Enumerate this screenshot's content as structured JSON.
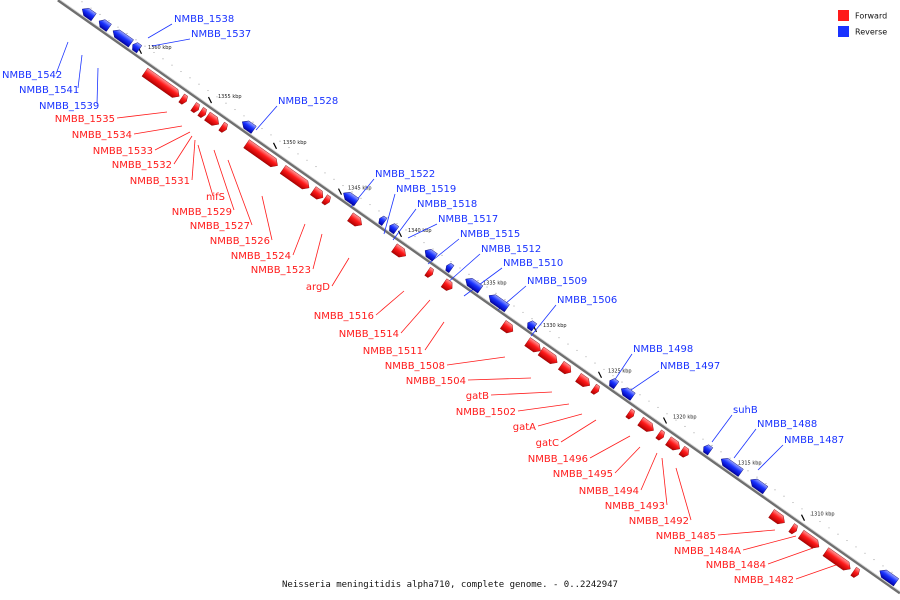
{
  "title": "Neisseria meningitidis alpha710, complete genome. - 0..2242947",
  "colors": {
    "forward": "#ff1a1a",
    "reverse": "#1a33ff",
    "axis": "#777777"
  },
  "legend": [
    {
      "label": "Forward",
      "strand": "forward"
    },
    {
      "label": "Reverse",
      "strand": "reverse"
    }
  ],
  "ticks": [
    "1360 kbp",
    "1355 kbp",
    "1350 kbp",
    "1345 kbp",
    "1340 kbp",
    "1335 kbp",
    "1330 kbp",
    "1325 kbp",
    "1320 kbp",
    "1315 kbp",
    "1310 kbp"
  ],
  "reverse_genes": [
    "NMBB_1538",
    "NMBB_1537",
    "NMBB_1542",
    "NMBB_1541",
    "NMBB_1539",
    "NMBB_1528",
    "NMBB_1522",
    "NMBB_1519",
    "NMBB_1518",
    "NMBB_1517",
    "NMBB_1515",
    "NMBB_1512",
    "NMBB_1510",
    "NMBB_1509",
    "NMBB_1506",
    "NMBB_1498",
    "NMBB_1497",
    "suhB",
    "NMBB_1488",
    "NMBB_1487"
  ],
  "forward_genes": [
    "NMBB_1535",
    "NMBB_1534",
    "NMBB_1533",
    "NMBB_1532",
    "NMBB_1531",
    "nifS",
    "NMBB_1529",
    "NMBB_1527",
    "NMBB_1526",
    "NMBB_1524",
    "NMBB_1523",
    "argD",
    "NMBB_1516",
    "NMBB_1514",
    "NMBB_1511",
    "NMBB_1508",
    "NMBB_1504",
    "gatB",
    "NMBB_1502",
    "gatA",
    "gatC",
    "NMBB_1496",
    "NMBB_1495",
    "NMBB_1494",
    "NMBB_1493",
    "NMBB_1492",
    "NMBB_1485",
    "NMBB_1484A",
    "NMBB_1484",
    "NMBB_1482"
  ]
}
